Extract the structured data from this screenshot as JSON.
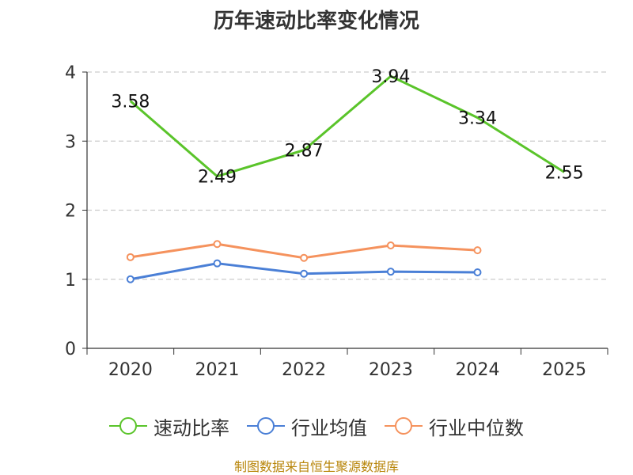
{
  "chart_data": {
    "type": "line",
    "title": "历年速动比率变化情况",
    "categories": [
      "2020",
      "2021",
      "2022",
      "2023",
      "2024",
      "2025"
    ],
    "ylim": [
      0,
      4
    ],
    "yticks": [
      "0",
      "1",
      "2",
      "3",
      "4"
    ],
    "grid": true,
    "legend_position": "bottom",
    "series": [
      {
        "name": "速动比率",
        "color": "#5ac42a",
        "values": [
          3.58,
          2.49,
          2.87,
          3.94,
          3.34,
          2.55
        ],
        "labels": [
          "3.58",
          "2.49",
          "2.87",
          "3.94",
          "3.34",
          "2.55"
        ]
      },
      {
        "name": "行业均值",
        "color": "#4a7fd6",
        "values": [
          1.0,
          1.23,
          1.08,
          1.11,
          1.1,
          null
        ]
      },
      {
        "name": "行业中位数",
        "color": "#f5925d",
        "values": [
          1.32,
          1.51,
          1.31,
          1.49,
          1.42,
          null
        ]
      }
    ]
  },
  "legend": {
    "items": [
      {
        "label": "速动比率",
        "color": "#5ac42a"
      },
      {
        "label": "行业均值",
        "color": "#4a7fd6"
      },
      {
        "label": "行业中位数",
        "color": "#f5925d"
      }
    ]
  },
  "footer": {
    "source": "制图数据来自恒生聚源数据库"
  }
}
